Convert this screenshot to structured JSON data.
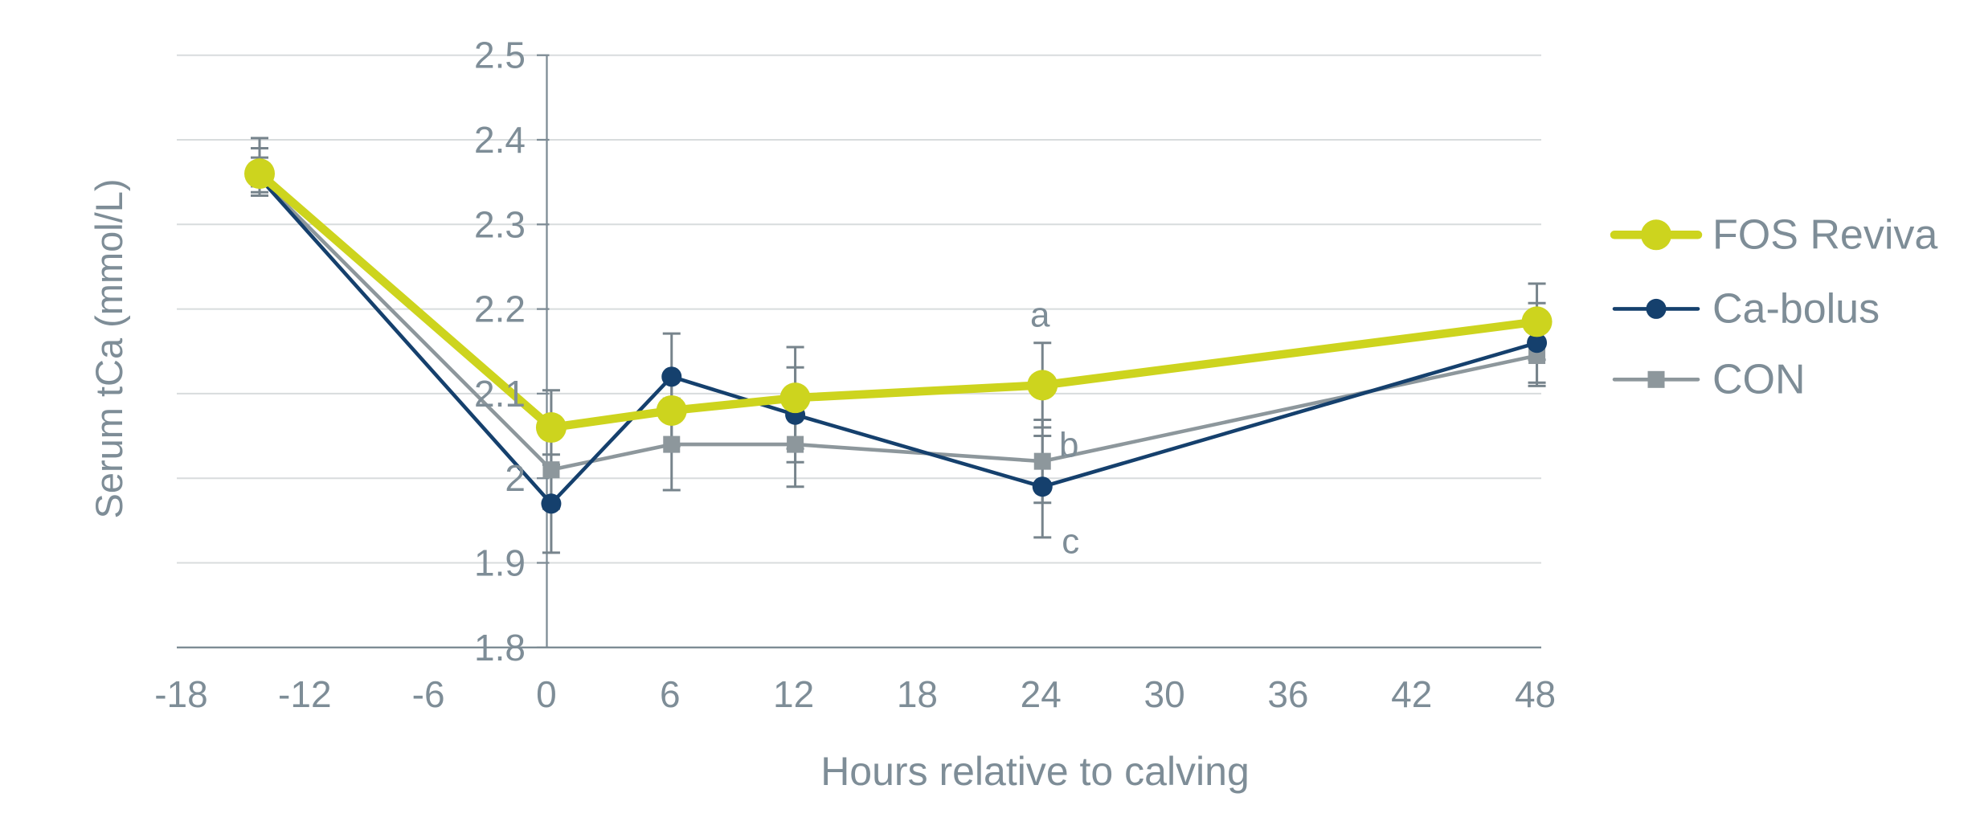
{
  "chart_data": {
    "type": "line",
    "title": "",
    "xlabel": "Hours relative to calving",
    "ylabel": "Serum tCa (mmol/L)",
    "x": [
      -14,
      0,
      6,
      12,
      24,
      48
    ],
    "series": [
      {
        "name": "FOS Reviva",
        "color": "#cdd41e",
        "marker": "circle",
        "marker_radius": 19,
        "line_width": 10.5,
        "values": [
          2.36,
          2.06,
          2.08,
          2.095,
          2.11,
          2.185
        ],
        "errors": [
          [
            0.03,
            0.026
          ],
          0.044,
          0.042,
          0.06,
          0.05,
          0.045
        ]
      },
      {
        "name": "Ca-bolus",
        "color": "#15406d",
        "marker": "circle",
        "marker_radius": 12.5,
        "line_width": 4.6,
        "values": [
          2.355,
          1.97,
          2.12,
          2.075,
          1.99,
          2.16
        ],
        "errors": [
          [
            0.047,
            0.017
          ],
          0.058,
          0.051,
          0.056,
          0.06,
          0.047
        ]
      },
      {
        "name": "CON",
        "color": "#8d979c",
        "marker": "square",
        "marker_size": 21,
        "line_width": 4.6,
        "values": [
          2.355,
          2.01,
          2.04,
          2.04,
          2.02,
          2.145
        ],
        "errors": [
          [
            0.024,
            0.01
          ],
          0.046,
          0.054,
          0.05,
          0.049,
          0.036
        ]
      }
    ],
    "xticks": [
      -18,
      -12,
      -6,
      0,
      6,
      12,
      18,
      24,
      30,
      36,
      42,
      48
    ],
    "yticks": [
      1.8,
      1.9,
      2,
      2.1,
      2.2,
      2.3,
      2.4,
      2.5
    ],
    "xlim": [
      -17.94,
      48.29
    ],
    "ylim": [
      1.8,
      2.5
    ],
    "grid": "horizontal",
    "legend_position": "right",
    "annotations": [
      {
        "text": "a",
        "x": 24,
        "y": 2.193,
        "dx": -1
      },
      {
        "text": "b",
        "x": 24,
        "y": 2.039,
        "dx": 35
      },
      {
        "text": "c",
        "x": 24,
        "y": 1.925,
        "dx": 37
      }
    ],
    "colors": {
      "grid": "#d8dcdd",
      "axis": "#7e8c95",
      "error_bar": "#77848c",
      "text": "#7e8d97",
      "background": "#ffffff"
    }
  }
}
